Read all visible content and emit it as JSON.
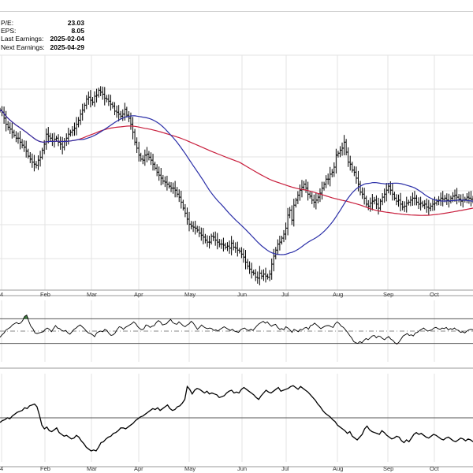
{
  "info": {
    "pe_label": "P/E:",
    "pe_value": "23.03",
    "eps_label": "EPS:",
    "eps_value": "8.05",
    "last_label": "Last Earnings:",
    "last_value": "2025-02-04",
    "next_label": "Next Earnings:",
    "next_value": "2025-04-29"
  },
  "chart_data": [
    {
      "type": "ohlc",
      "panel": "price",
      "x_ticks": [
        "4",
        "Feb",
        "Mar",
        "Apr",
        "May",
        "Jun",
        "Jul",
        "Aug",
        "Sep",
        "Oct"
      ],
      "grid": true,
      "series": [
        {
          "name": "",
          "kind": "ohlc-bars",
          "color": "#000000"
        },
        {
          "name": "",
          "kind": "line",
          "color": "#2b2fa8"
        },
        {
          "name": "",
          "kind": "line",
          "color": "#c81e3c"
        }
      ],
      "close": [
        290,
        288,
        282,
        276,
        273,
        271,
        268,
        265,
        262,
        262,
        258,
        255,
        253,
        249,
        244,
        241,
        238,
        236,
        235,
        240,
        243,
        250,
        256,
        266,
        264,
        262,
        259,
        261,
        262,
        258,
        256,
        253,
        259,
        262,
        266,
        268,
        270,
        272,
        276,
        280,
        286,
        290,
        295,
        301,
        303,
        300,
        298,
        304,
        305,
        310,
        308,
        306,
        302,
        301,
        299,
        296,
        294,
        289,
        288,
        286,
        284,
        286,
        291,
        285,
        282,
        276,
        268,
        258,
        252,
        245,
        241,
        240,
        245,
        246,
        243,
        240,
        236,
        232,
        228,
        225,
        222,
        219,
        218,
        216,
        214,
        212,
        212,
        210,
        206,
        203,
        198,
        192,
        187,
        181,
        176,
        174,
        173,
        172,
        170,
        167,
        165,
        163,
        160,
        158,
        158,
        164,
        163,
        160,
        158,
        156,
        156,
        155,
        153,
        154,
        152,
        157,
        153,
        152,
        150,
        149,
        146,
        143,
        138,
        134,
        131,
        128,
        127,
        123,
        122,
        127,
        124,
        126,
        124,
        123,
        126,
        136,
        144,
        150,
        156,
        158,
        162,
        166,
        172,
        185,
        190,
        180,
        195,
        200,
        205,
        210,
        213,
        216,
        212,
        206,
        204,
        200,
        198,
        200,
        203,
        207,
        212,
        216,
        221,
        221,
        226,
        228,
        233,
        245,
        247,
        250,
        252,
        258,
        248,
        238,
        236,
        230,
        228,
        222,
        216,
        208,
        206,
        202,
        196,
        194,
        197,
        199,
        200,
        196,
        192,
        199,
        203,
        206,
        210,
        214,
        210,
        206,
        202,
        199,
        200,
        196,
        193,
        194,
        197,
        198,
        200,
        202,
        202,
        198,
        196,
        197,
        195,
        196,
        193,
        192,
        194,
        196,
        197,
        199,
        200,
        202,
        201,
        202,
        200,
        199,
        202,
        204,
        205,
        203,
        201,
        199,
        200,
        201,
        203,
        202,
        201,
        200
      ],
      "ylim": [
        110,
        345
      ]
    },
    {
      "type": "line",
      "panel": "oscillator-1",
      "x_ticks": [],
      "series": [
        {
          "name": "",
          "color": "#000000"
        }
      ],
      "band_upper": 70,
      "band_lower": 30,
      "midline": 50,
      "values": [
        40,
        44,
        47,
        52,
        54,
        56,
        60,
        62,
        64,
        62,
        63,
        67,
        74,
        76,
        66,
        58,
        54,
        47,
        46,
        47,
        48,
        49,
        53,
        55,
        53,
        49,
        54,
        59,
        55,
        54,
        51,
        50,
        51,
        47,
        45,
        49,
        53,
        55,
        58,
        60,
        57,
        54,
        50,
        47,
        46,
        44,
        41,
        47,
        49,
        50,
        49,
        53,
        51,
        46,
        43,
        44,
        47,
        53,
        57,
        56,
        53,
        56,
        58,
        60,
        62,
        65,
        62,
        57,
        54,
        52,
        54,
        60,
        59,
        56,
        58,
        59,
        64,
        67,
        65,
        60,
        61,
        62,
        66,
        69,
        64,
        62,
        61,
        65,
        62,
        59,
        57,
        60,
        62,
        66,
        63,
        58,
        53,
        56,
        60,
        57,
        55,
        54,
        55,
        54,
        51,
        52,
        50,
        53,
        55,
        57,
        55,
        53,
        51,
        53,
        50,
        49,
        48,
        52,
        54,
        55,
        52,
        51,
        53,
        51,
        55,
        59,
        62,
        64,
        66,
        63,
        65,
        61,
        58,
        60,
        61,
        56,
        53,
        54,
        52,
        57,
        55,
        52,
        48,
        53,
        51,
        49,
        53,
        52,
        55,
        56,
        53,
        59,
        60,
        63,
        60,
        57,
        54,
        56,
        58,
        59,
        59,
        57,
        56,
        62,
        65,
        62,
        58,
        56,
        52,
        48,
        43,
        39,
        33,
        31,
        30,
        33,
        31,
        35,
        38,
        36,
        39,
        42,
        43,
        39,
        42,
        41,
        38,
        36,
        39,
        41,
        37,
        35,
        31,
        29,
        32,
        37,
        42,
        44,
        46,
        43,
        44,
        42,
        47,
        48,
        51,
        53,
        55,
        52,
        50,
        51,
        52,
        55,
        56,
        54,
        53,
        55,
        54,
        56,
        52,
        54,
        53,
        55,
        52,
        51,
        48,
        49,
        47,
        50,
        52,
        53,
        52
      ],
      "ylim": [
        0,
        100
      ]
    },
    {
      "type": "line",
      "panel": "oscillator-2",
      "x_ticks": [
        "4",
        "Feb",
        "Mar",
        "Apr",
        "May",
        "Jun",
        "Jul",
        "Aug",
        "Sep",
        "Oct"
      ],
      "series": [
        {
          "name": "",
          "color": "#000000"
        }
      ],
      "midline": 0,
      "values": [
        -5,
        -3,
        -2,
        0,
        -1,
        2,
        4,
        6,
        7,
        8,
        11,
        10,
        13,
        14,
        15,
        12,
        3,
        -8,
        -12,
        -10,
        -14,
        -15,
        -13,
        -11,
        -16,
        -18,
        -20,
        -19,
        -21,
        -23,
        -22,
        -19,
        -21,
        -25,
        -28,
        -32,
        -34,
        -36,
        -35,
        -36,
        -32,
        -27,
        -26,
        -23,
        -21,
        -20,
        -17,
        -16,
        -14,
        -11,
        -11,
        -12,
        -10,
        -8,
        -6,
        -3,
        -1,
        1,
        2,
        4,
        6,
        8,
        10,
        9,
        11,
        8,
        10,
        12,
        14,
        10,
        8,
        9,
        12,
        13,
        16,
        20,
        34,
        31,
        26,
        30,
        32,
        31,
        29,
        27,
        29,
        26,
        27,
        26,
        25,
        22,
        23,
        24,
        27,
        29,
        30,
        27,
        28,
        27,
        31,
        33,
        31,
        29,
        27,
        25,
        22,
        20,
        24,
        27,
        30,
        28,
        27,
        29,
        31,
        33,
        29,
        30,
        31,
        32,
        34,
        35,
        33,
        31,
        34,
        32,
        30,
        28,
        25,
        22,
        19,
        15,
        12,
        8,
        5,
        3,
        1,
        -2,
        -4,
        -8,
        -10,
        -12,
        -14,
        -17,
        -15,
        -20,
        -22,
        -24,
        -21,
        -18,
        -12,
        -9,
        -13,
        -15,
        -16,
        -17,
        -18,
        -14,
        -16,
        -19,
        -21,
        -23,
        -22,
        -20,
        -21,
        -25,
        -27,
        -24,
        -26,
        -22,
        -18,
        -16,
        -18,
        -17,
        -19,
        -21,
        -22,
        -20,
        -18,
        -19,
        -21,
        -23,
        -24,
        -22,
        -21,
        -23,
        -25,
        -26,
        -24,
        -22,
        -23,
        -25,
        -23,
        -24,
        -26
      ],
      "ylim": [
        -48,
        48
      ]
    }
  ]
}
